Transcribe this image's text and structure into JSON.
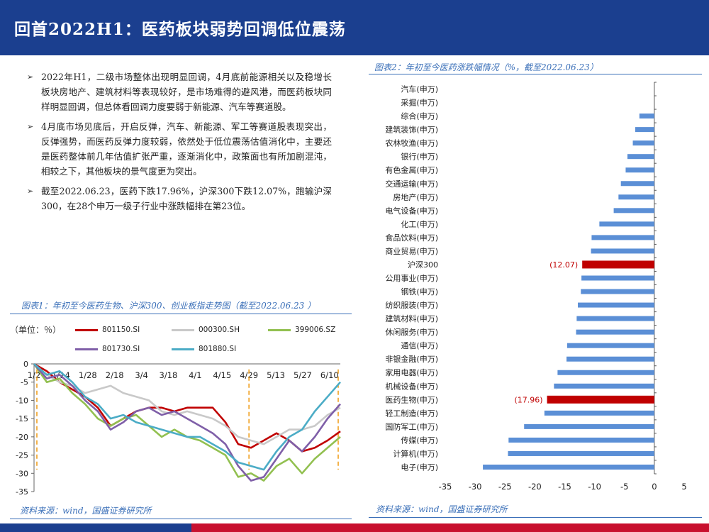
{
  "title": "回首2022H1：医药板块弱势回调低位震荡",
  "bullets": [
    "2022年H1，二级市场整体出现明显回调，4月底前能源相关以及稳增长板块房地产、建筑材料等表现较好，是市场难得的避风港，而医药板块同样明显回调，但总体看回调力度要弱于新能源、汽车等赛道股。",
    "4月底市场见底后，开启反弹，汽车、新能源、军工等赛道股表现突出，反弹强势，而医药反弹力度较弱，依然处于低位震荡估值消化中，主要还是医药整体前几年估值扩张严重，逐渐消化中，政策面也有所加剧混沌，相较之下，其他板块的景气度更为突出。",
    "截至2022.06.23，医药下跌17.96%，沪深300下跌12.07%，跑输沪深300，在28个申万一级子行业中涨跌幅排在第23位。"
  ],
  "figure1": {
    "title": "图表1：年初至今医药生物、沪深300、创业板指走势图（截至2022.06.23 ）",
    "unit": "（单位：％）",
    "source": "资料来源：wind，国盛证券研究所"
  },
  "figure2": {
    "title": "图表2：年初至今医药涨跌幅情况（%，截至2022.06.23）",
    "source": "资料来源：wind，国盛证券研究所"
  },
  "chart_data": [
    {
      "type": "line",
      "title": "年初至今医药生物、沪深300、创业板指走势图（截至2022.06.23 ）",
      "ylabel": "（单位：％）",
      "ylim": [
        -35,
        0
      ],
      "yticks": [
        0,
        -5,
        -10,
        -15,
        -20,
        -25,
        -30,
        -35
      ],
      "x_ticks": [
        "1/2",
        "1/14",
        "1/28",
        "2/18",
        "3/4",
        "3/18",
        "4/1",
        "4/15",
        "4/29",
        "5/13",
        "5/27",
        "6/10"
      ],
      "series": [
        {
          "name": "801150.SI",
          "color": "#c00000",
          "values": [
            0,
            -2,
            -5,
            -7,
            -9,
            -12,
            -17,
            -15,
            -13,
            -12,
            -12,
            -13,
            -12,
            -12,
            -12,
            -16,
            -22,
            -23,
            -21,
            -19,
            -21,
            -24,
            -23,
            -21,
            -18.5
          ]
        },
        {
          "name": "000300.SH",
          "color": "#c9c9c9",
          "values": [
            0,
            -3,
            -5,
            -6,
            -8,
            -7,
            -6,
            -8,
            -9,
            -10,
            -13,
            -14,
            -13,
            -14,
            -15,
            -17,
            -20,
            -21,
            -22,
            -20,
            -18,
            -18,
            -17,
            -14,
            -12
          ]
        },
        {
          "name": "399006.SZ",
          "color": "#92c050",
          "values": [
            0,
            -5,
            -4,
            -8,
            -11,
            -15,
            -17,
            -15,
            -14,
            -17,
            -20,
            -18,
            -20,
            -21,
            -23,
            -25,
            -31,
            -30,
            -32,
            -28,
            -26,
            -30,
            -26,
            -23,
            -20
          ]
        },
        {
          "name": "801730.SI",
          "color": "#7f5fa8",
          "values": [
            0,
            -4,
            -3,
            -6,
            -10,
            -13,
            -18,
            -16,
            -13,
            -12,
            -14,
            -13,
            -15,
            -17,
            -19,
            -22,
            -28,
            -32,
            -31,
            -26,
            -21,
            -24,
            -20,
            -15,
            -11
          ]
        },
        {
          "name": "801880.SI",
          "color": "#4bacc6",
          "values": [
            0,
            -3,
            -2,
            -5,
            -9,
            -11,
            -15,
            -14,
            -16,
            -17,
            -18,
            -19,
            -20,
            -20,
            -22,
            -24,
            -27,
            -28,
            -29,
            -24,
            -20,
            -18,
            -13,
            -9,
            -5
          ]
        }
      ],
      "annotations": [
        "dashed-vertical-at-1/2",
        "dashed-vertical-at-4/29",
        "dashed-vertical-at-6/23"
      ]
    },
    {
      "type": "bar",
      "orientation": "horizontal",
      "title": "年初至今医药涨跌幅情况（%，截至2022.06.23）",
      "xlim": [
        -35,
        5
      ],
      "xticks": [
        -35,
        -30,
        -25,
        -20,
        -15,
        -10,
        -5,
        0,
        5
      ],
      "categories": [
        "汽车(申万)",
        "采掘(申万)",
        "综合(申万)",
        "建筑装饰(申万)",
        "农林牧渔(申万)",
        "银行(申万)",
        "有色金属(申万)",
        "交通运输(申万)",
        "房地产(申万)",
        "电气设备(申万)",
        "化工(申万)",
        "食品饮料(申万)",
        "商业贸易(申万)",
        "沪深300",
        "公用事业(申万)",
        "钢铁(申万)",
        "纺织服装(申万)",
        "建筑材料(申万)",
        "休闲服务(申万)",
        "通信(申万)",
        "非银金融(申万)",
        "家用电器(申万)",
        "机械设备(申万)",
        "医药生物(申万)",
        "轻工制造(申万)",
        "国防军工(申万)",
        "传媒(申万)",
        "计算机(申万)",
        "电子(申万)"
      ],
      "values": [
        0,
        0,
        -2.5,
        -3.2,
        -3.6,
        -4.5,
        -4.8,
        -5.6,
        -6.0,
        -6.8,
        -9.2,
        -10.5,
        -10.6,
        -12.07,
        -12.2,
        -12.3,
        -12.8,
        -13.0,
        -13.1,
        -14.6,
        -14.7,
        -16.2,
        -16.8,
        -17.96,
        -18.4,
        -21.8,
        -24.4,
        -24.5,
        -28.7
      ],
      "highlight": [
        "沪深300",
        "医药生物(申万)"
      ],
      "data_labels": {
        "沪深300": "(12.07)",
        "医药生物(申万)": "(17.96)"
      },
      "colors": {
        "default": "#5b8fd6",
        "highlight": "#c00000"
      }
    }
  ]
}
